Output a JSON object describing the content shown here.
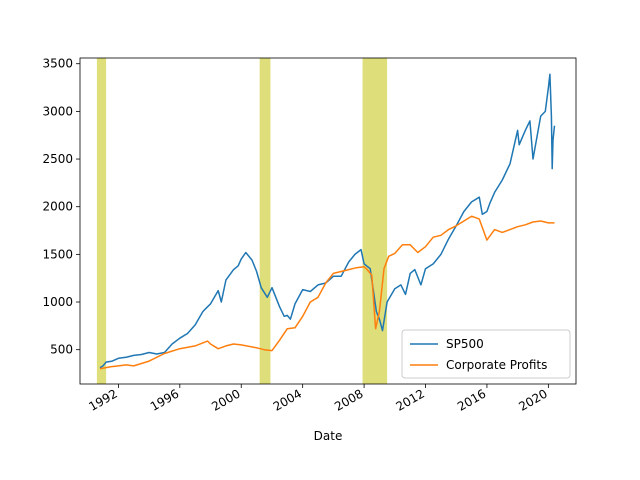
{
  "chart_data": {
    "type": "line",
    "title": "",
    "xlabel": "Date",
    "ylabel": "",
    "xlim": [
      1989.5,
      2021.8
    ],
    "ylim": [
      140,
      3560
    ],
    "x_ticks": [
      {
        "value": 1992,
        "label": "1992"
      },
      {
        "value": 1996,
        "label": "1996"
      },
      {
        "value": 2000,
        "label": "2000"
      },
      {
        "value": 2004,
        "label": "2004"
      },
      {
        "value": 2008,
        "label": "2008"
      },
      {
        "value": 2012,
        "label": "2012"
      },
      {
        "value": 2016,
        "label": "2016"
      },
      {
        "value": 2020,
        "label": "2020"
      }
    ],
    "y_ticks": [
      {
        "value": 500,
        "label": "500"
      },
      {
        "value": 1000,
        "label": "1000"
      },
      {
        "value": 1500,
        "label": "1500"
      },
      {
        "value": 2000,
        "label": "2000"
      },
      {
        "value": 2500,
        "label": "2500"
      },
      {
        "value": 3000,
        "label": "3000"
      },
      {
        "value": 3500,
        "label": "3500"
      }
    ],
    "grid": false,
    "legend_position": "lower-right",
    "shaded_periods": [
      {
        "start": 1990.6,
        "end": 1991.2
      },
      {
        "start": 2001.2,
        "end": 2001.9
      },
      {
        "start": 2007.9,
        "end": 2009.5
      }
    ],
    "shade_color": "#dede7a",
    "series": [
      {
        "name": "SP500",
        "color": "#1f77b4",
        "x": [
          1990.8,
          1991.0,
          1991.2,
          1991.6,
          1992.0,
          1992.5,
          1993.0,
          1993.5,
          1994.0,
          1994.5,
          1995.0,
          1995.5,
          1996.0,
          1996.5,
          1997.0,
          1997.5,
          1997.8,
          1998.0,
          1998.5,
          1998.7,
          1999.0,
          1999.5,
          1999.8,
          2000.0,
          2000.3,
          2000.7,
          2001.0,
          2001.3,
          2001.7,
          2002.0,
          2002.5,
          2002.8,
          2003.0,
          2003.2,
          2003.5,
          2004.0,
          2004.5,
          2005.0,
          2005.5,
          2006.0,
          2006.5,
          2007.0,
          2007.4,
          2007.8,
          2008.0,
          2008.4,
          2008.8,
          2009.0,
          2009.2,
          2009.5,
          2010.0,
          2010.4,
          2010.7,
          2011.0,
          2011.3,
          2011.7,
          2012.0,
          2012.5,
          2013.0,
          2013.5,
          2014.0,
          2014.5,
          2015.0,
          2015.5,
          2015.7,
          2016.0,
          2016.2,
          2016.5,
          2017.0,
          2017.5,
          2018.0,
          2018.1,
          2018.5,
          2018.8,
          2019.0,
          2019.5,
          2019.8,
          2020.0,
          2020.1,
          2020.2,
          2020.25,
          2020.3,
          2020.4
        ],
        "y": [
          310,
          330,
          370,
          380,
          410,
          420,
          440,
          450,
          470,
          455,
          470,
          560,
          620,
          670,
          760,
          900,
          950,
          980,
          1120,
          1000,
          1230,
          1340,
          1380,
          1450,
          1520,
          1440,
          1320,
          1150,
          1050,
          1150,
          950,
          850,
          860,
          820,
          980,
          1130,
          1110,
          1180,
          1200,
          1270,
          1270,
          1420,
          1500,
          1550,
          1400,
          1350,
          900,
          820,
          700,
          1000,
          1140,
          1180,
          1080,
          1300,
          1340,
          1180,
          1350,
          1400,
          1500,
          1660,
          1800,
          1950,
          2050,
          2100,
          1920,
          1950,
          2040,
          2150,
          2280,
          2450,
          2800,
          2650,
          2800,
          2900,
          2500,
          2950,
          3000,
          3250,
          3390,
          2950,
          2400,
          2700,
          2850
        ]
      },
      {
        "name": "Corporate Profits",
        "color": "#ff7f0e",
        "x": [
          1990.8,
          1991.5,
          1992.0,
          1992.5,
          1993.0,
          1994.0,
          1995.0,
          1996.0,
          1997.0,
          1997.8,
          1998.0,
          1998.5,
          1999.0,
          1999.5,
          2000.0,
          2001.0,
          2001.5,
          2002.0,
          2002.5,
          2003.0,
          2003.5,
          2004.0,
          2004.5,
          2005.0,
          2005.5,
          2006.0,
          2006.5,
          2007.0,
          2007.5,
          2008.0,
          2008.2,
          2008.5,
          2008.75,
          2009.0,
          2009.3,
          2009.6,
          2010.0,
          2010.5,
          2011.0,
          2011.5,
          2012.0,
          2012.5,
          2013.0,
          2013.5,
          2014.0,
          2014.5,
          2015.0,
          2015.5,
          2016.0,
          2016.5,
          2017.0,
          2017.5,
          2018.0,
          2018.5,
          2019.0,
          2019.5,
          2020.0,
          2020.4
        ],
        "y": [
          300,
          320,
          330,
          340,
          330,
          380,
          460,
          510,
          540,
          590,
          560,
          510,
          540,
          560,
          550,
          520,
          500,
          490,
          600,
          720,
          730,
          850,
          1000,
          1050,
          1200,
          1300,
          1320,
          1340,
          1360,
          1370,
          1340,
          1280,
          720,
          900,
          1350,
          1480,
          1510,
          1600,
          1600,
          1520,
          1580,
          1680,
          1700,
          1760,
          1800,
          1850,
          1900,
          1870,
          1650,
          1760,
          1730,
          1760,
          1790,
          1810,
          1840,
          1850,
          1830,
          1830
        ]
      }
    ]
  }
}
